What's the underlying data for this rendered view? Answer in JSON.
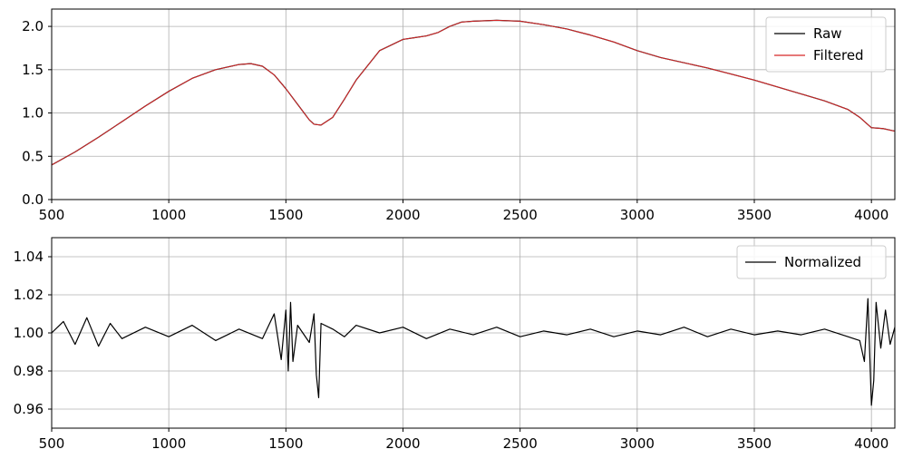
{
  "chart_data": [
    {
      "type": "line",
      "title": "",
      "xlabel": "",
      "ylabel": "",
      "xlim": [
        500,
        4100
      ],
      "ylim": [
        0.0,
        2.2
      ],
      "xticks": [
        500,
        1000,
        1500,
        2000,
        2500,
        3000,
        3500,
        4000
      ],
      "yticks": [
        0.0,
        0.5,
        1.0,
        1.5,
        2.0
      ],
      "xtick_labels": [
        "500",
        "1000",
        "1500",
        "2000",
        "2500",
        "3000",
        "3500",
        "4000"
      ],
      "ytick_labels": [
        "0.0",
        "0.5",
        "1.0",
        "1.5",
        "2.0"
      ],
      "grid": true,
      "legend_position": "top-right",
      "series": [
        {
          "name": "Raw",
          "color": "#000000",
          "x": [
            500,
            600,
            700,
            800,
            900,
            1000,
            1100,
            1200,
            1300,
            1350,
            1400,
            1450,
            1500,
            1550,
            1600,
            1620,
            1650,
            1700,
            1750,
            1800,
            1900,
            2000,
            2050,
            2100,
            2150,
            2200,
            2250,
            2300,
            2400,
            2500,
            2600,
            2700,
            2800,
            2900,
            3000,
            3100,
            3200,
            3300,
            3400,
            3500,
            3600,
            3700,
            3800,
            3900,
            3950,
            4000,
            4050,
            4100
          ],
          "y": [
            0.4,
            0.55,
            0.72,
            0.9,
            1.08,
            1.25,
            1.4,
            1.5,
            1.56,
            1.57,
            1.54,
            1.44,
            1.28,
            1.1,
            0.92,
            0.87,
            0.86,
            0.95,
            1.16,
            1.38,
            1.72,
            1.85,
            1.87,
            1.89,
            1.93,
            2.0,
            2.05,
            2.06,
            2.07,
            2.06,
            2.02,
            1.97,
            1.9,
            1.82,
            1.72,
            1.64,
            1.58,
            1.52,
            1.45,
            1.38,
            1.3,
            1.22,
            1.14,
            1.04,
            0.95,
            0.83,
            0.82,
            0.79
          ]
        },
        {
          "name": "Filtered",
          "color": "#d62728",
          "x": [
            500,
            600,
            700,
            800,
            900,
            1000,
            1100,
            1200,
            1300,
            1350,
            1400,
            1450,
            1500,
            1550,
            1600,
            1620,
            1650,
            1700,
            1750,
            1800,
            1900,
            2000,
            2050,
            2100,
            2150,
            2200,
            2250,
            2300,
            2400,
            2500,
            2600,
            2700,
            2800,
            2900,
            3000,
            3100,
            3200,
            3300,
            3400,
            3500,
            3600,
            3700,
            3800,
            3900,
            3950,
            4000,
            4050,
            4100
          ],
          "y": [
            0.4,
            0.55,
            0.72,
            0.9,
            1.08,
            1.25,
            1.4,
            1.5,
            1.56,
            1.57,
            1.54,
            1.44,
            1.28,
            1.1,
            0.92,
            0.87,
            0.86,
            0.95,
            1.16,
            1.38,
            1.72,
            1.85,
            1.87,
            1.89,
            1.93,
            2.0,
            2.05,
            2.06,
            2.07,
            2.06,
            2.02,
            1.97,
            1.9,
            1.82,
            1.72,
            1.64,
            1.58,
            1.52,
            1.45,
            1.38,
            1.3,
            1.22,
            1.14,
            1.04,
            0.95,
            0.83,
            0.82,
            0.79
          ]
        }
      ]
    },
    {
      "type": "line",
      "title": "",
      "xlabel": "",
      "ylabel": "",
      "xlim": [
        500,
        4100
      ],
      "ylim": [
        0.95,
        1.05
      ],
      "xticks": [
        500,
        1000,
        1500,
        2000,
        2500,
        3000,
        3500,
        4000
      ],
      "yticks": [
        0.96,
        0.98,
        1.0,
        1.02,
        1.04
      ],
      "xtick_labels": [
        "500",
        "1000",
        "1500",
        "2000",
        "2500",
        "3000",
        "3500",
        "4000"
      ],
      "ytick_labels": [
        "0.96",
        "0.98",
        "1.00",
        "1.02",
        "1.04"
      ],
      "grid": true,
      "legend_position": "top-right",
      "series": [
        {
          "name": "Normalized",
          "color": "#000000",
          "x": [
            500,
            550,
            600,
            650,
            700,
            750,
            800,
            900,
            1000,
            1100,
            1200,
            1300,
            1400,
            1450,
            1480,
            1500,
            1510,
            1520,
            1530,
            1550,
            1600,
            1620,
            1630,
            1640,
            1650,
            1700,
            1750,
            1800,
            1900,
            2000,
            2100,
            2200,
            2300,
            2400,
            2500,
            2600,
            2700,
            2800,
            2900,
            3000,
            3100,
            3200,
            3300,
            3400,
            3500,
            3600,
            3700,
            3800,
            3900,
            3950,
            3970,
            3985,
            4000,
            4010,
            4020,
            4040,
            4060,
            4080,
            4100
          ],
          "y": [
            1.0,
            1.006,
            0.994,
            1.008,
            0.993,
            1.005,
            0.997,
            1.003,
            0.998,
            1.004,
            0.996,
            1.002,
            0.997,
            1.01,
            0.986,
            1.012,
            0.98,
            1.016,
            0.985,
            1.004,
            0.995,
            1.01,
            0.978,
            0.966,
            1.005,
            1.002,
            0.998,
            1.004,
            1.0,
            1.003,
            0.997,
            1.002,
            0.999,
            1.003,
            0.998,
            1.001,
            0.999,
            1.002,
            0.998,
            1.001,
            0.999,
            1.003,
            0.998,
            1.002,
            0.999,
            1.001,
            0.999,
            1.002,
            0.998,
            0.996,
            0.985,
            1.018,
            0.962,
            0.975,
            1.016,
            0.992,
            1.012,
            0.994,
            1.003
          ]
        }
      ]
    }
  ]
}
